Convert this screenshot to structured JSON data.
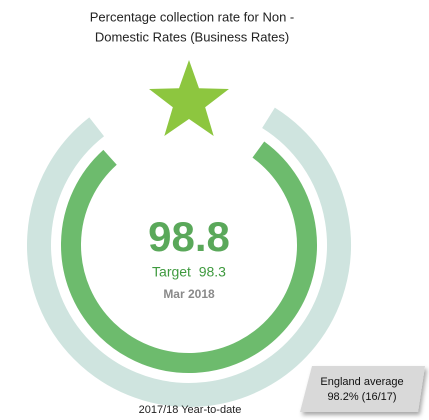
{
  "kpi": {
    "title_line1": "Percentage collection rate for Non -",
    "title_line2": "Domestic Rates (Business Rates)",
    "value": "98.8",
    "target": "Target  98.3",
    "date": "Mar 2018",
    "period": "2017/18 Year-to-date",
    "comparison_line1": "England average",
    "comparison_line2": "98.2% (16/17)"
  }
}
